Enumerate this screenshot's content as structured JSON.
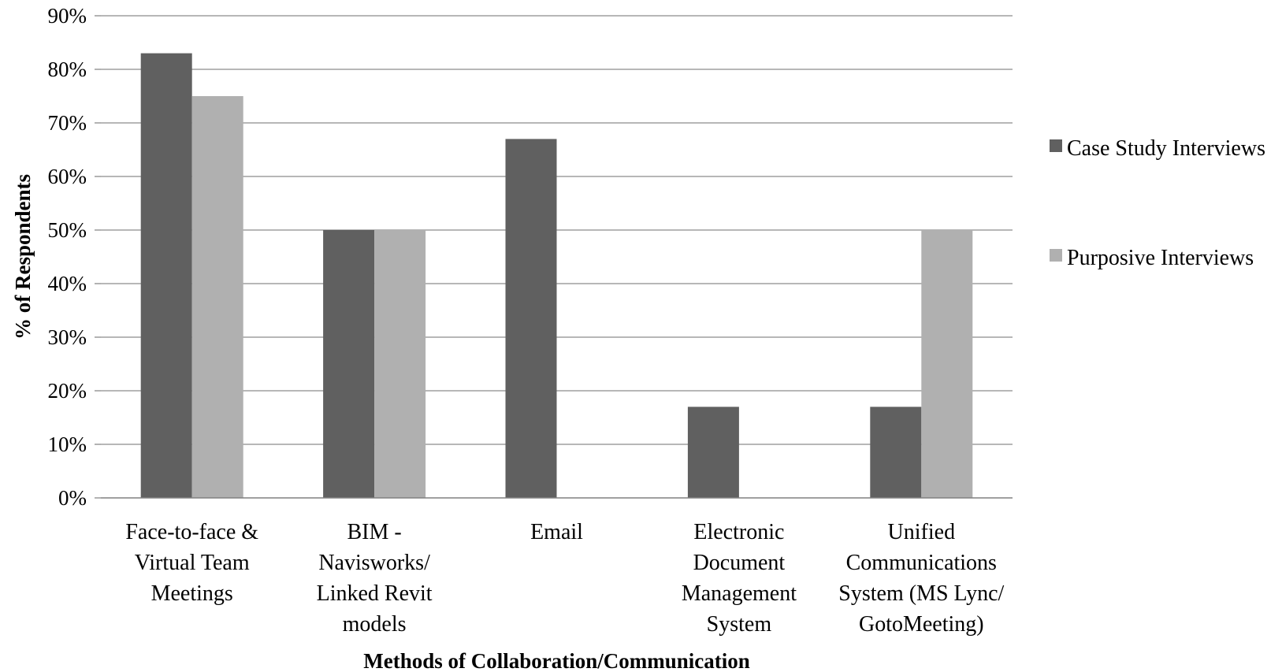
{
  "chart_data": {
    "type": "bar",
    "categories": [
      [
        "Face-to-face &",
        "Virtual Team",
        "Meetings"
      ],
      [
        "BIM -",
        "Navisworks/",
        "Linked Revit",
        "models"
      ],
      [
        "Email"
      ],
      [
        "Electronic",
        "Document",
        "Management",
        "System"
      ],
      [
        "Unified",
        "Communications",
        "System (MS Lync/",
        "GotoMeeting)"
      ]
    ],
    "series": [
      {
        "name": "Case Study Interviews",
        "color": "#606060",
        "values": [
          83,
          50,
          67,
          17,
          17
        ]
      },
      {
        "name": "Purposive Interviews",
        "color": "#b0b0b0",
        "values": [
          75,
          50,
          0,
          0,
          50
        ]
      }
    ],
    "ylim": [
      0,
      90
    ],
    "yticks": [
      "0%",
      "10%",
      "20%",
      "30%",
      "40%",
      "50%",
      "60%",
      "70%",
      "80%",
      "90%"
    ],
    "xlabel": "Methods of Collaboration/Communication",
    "ylabel": "% of Respondents",
    "grid": true,
    "legend_position": "right"
  }
}
